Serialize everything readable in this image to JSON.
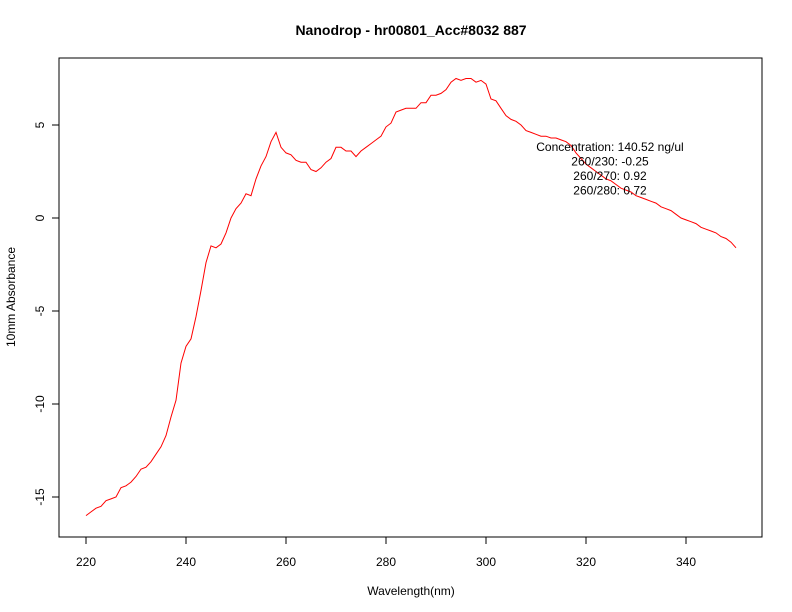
{
  "chart_data": {
    "type": "line",
    "title": "Nanodrop - hr00801_Acc#8032 887",
    "xlabel": "Wavelength(nm)",
    "ylabel": "10mm Absorbance",
    "xlim": [
      220,
      350
    ],
    "ylim": [
      -16,
      7.5
    ],
    "grid": false,
    "x_ticks": [
      220,
      240,
      260,
      280,
      300,
      320,
      340
    ],
    "y_ticks": [
      -15,
      -10,
      -5,
      0,
      5
    ],
    "x_tick_labels": [
      "220",
      "240",
      "260",
      "280",
      "300",
      "320",
      "340"
    ],
    "y_tick_labels": [
      "-15",
      "-10",
      "-5",
      "0",
      "5"
    ],
    "series": [
      {
        "color": "#ff0000",
        "x": [
          220,
          221,
          222,
          223,
          224,
          225,
          226,
          227,
          228,
          229,
          230,
          231,
          232,
          233,
          234,
          235,
          236,
          237,
          238,
          239,
          240,
          241,
          242,
          243,
          244,
          245,
          246,
          247,
          248,
          249,
          250,
          251,
          252,
          253,
          254,
          255,
          256,
          257,
          258,
          259,
          260,
          261,
          262,
          263,
          264,
          265,
          266,
          267,
          268,
          269,
          270,
          271,
          272,
          273,
          274,
          275,
          276,
          277,
          278,
          279,
          280,
          281,
          282,
          283,
          284,
          285,
          286,
          287,
          288,
          289,
          290,
          291,
          292,
          293,
          294,
          295,
          296,
          297,
          298,
          299,
          300,
          301,
          302,
          303,
          304,
          305,
          306,
          307,
          308,
          309,
          310,
          311,
          312,
          313,
          314,
          315,
          316,
          317,
          318,
          319,
          320,
          321,
          322,
          323,
          324,
          325,
          326,
          327,
          328,
          329,
          330,
          331,
          332,
          333,
          334,
          335,
          336,
          337,
          338,
          339,
          340,
          341,
          342,
          343,
          344,
          345,
          346,
          347,
          348,
          349,
          350
        ],
        "y": [
          -16.0,
          -15.8,
          -15.6,
          -15.5,
          -15.2,
          -15.1,
          -15.0,
          -14.5,
          -14.4,
          -14.2,
          -13.9,
          -13.5,
          -13.4,
          -13.1,
          -12.7,
          -12.3,
          -11.7,
          -10.7,
          -9.8,
          -7.8,
          -6.9,
          -6.5,
          -5.3,
          -3.9,
          -2.4,
          -1.5,
          -1.6,
          -1.4,
          -0.8,
          0.0,
          0.5,
          0.8,
          1.3,
          1.2,
          2.1,
          2.8,
          3.3,
          4.1,
          4.6,
          3.8,
          3.5,
          3.4,
          3.1,
          3.0,
          3.0,
          2.6,
          2.5,
          2.7,
          3.0,
          3.2,
          3.8,
          3.8,
          3.6,
          3.6,
          3.3,
          3.6,
          3.8,
          4.0,
          4.2,
          4.4,
          4.9,
          5.1,
          5.7,
          5.8,
          5.9,
          5.9,
          5.9,
          6.2,
          6.2,
          6.6,
          6.6,
          6.7,
          6.9,
          7.3,
          7.5,
          7.4,
          7.5,
          7.5,
          7.3,
          7.4,
          7.2,
          6.4,
          6.3,
          5.9,
          5.5,
          5.3,
          5.2,
          5.0,
          4.7,
          4.6,
          4.5,
          4.4,
          4.4,
          4.3,
          4.3,
          4.2,
          4.1,
          3.9,
          3.5,
          3.2,
          2.9,
          2.7,
          2.5,
          2.3,
          2.1,
          2.0,
          1.8,
          1.6,
          1.5,
          1.4,
          1.2,
          1.1,
          1.0,
          0.9,
          0.8,
          0.6,
          0.5,
          0.4,
          0.2,
          0.0,
          -0.1,
          -0.2,
          -0.3,
          -0.5,
          -0.6,
          -0.7,
          -0.8,
          -1.0,
          -1.1,
          -1.3,
          -1.6
        ]
      }
    ],
    "annotations": [
      "Concentration: 140.52 ng/ul",
      "260/230: -0.25",
      "260/270: 0.92",
      "260/280: 0.72"
    ]
  }
}
